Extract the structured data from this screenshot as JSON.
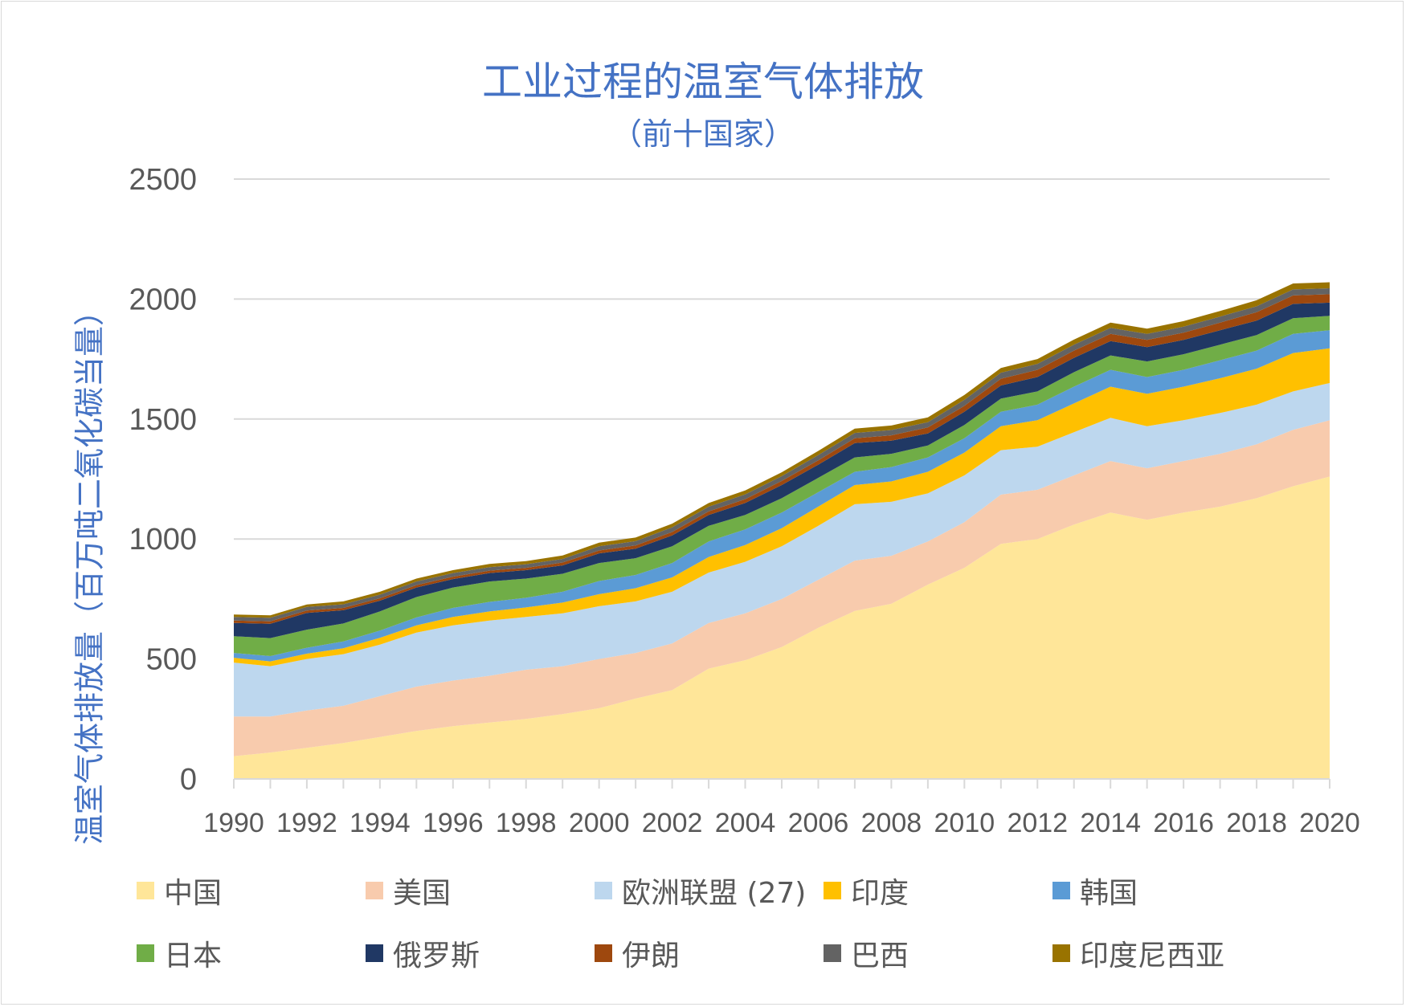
{
  "chart_data": {
    "type": "area",
    "stacked": true,
    "title": "工业过程的温室气体排放",
    "subtitle": "（前十国家）",
    "ylabel": "温室气体排放量（百万吨二氧化碳当量）",
    "xlabel": "",
    "ylim": [
      0,
      2500
    ],
    "yticks": [
      "0",
      "500",
      "1000",
      "1500",
      "2000",
      "2500"
    ],
    "xticks": [
      "1990",
      "1992",
      "1994",
      "1996",
      "1998",
      "2000",
      "2002",
      "2004",
      "2006",
      "2008",
      "2010",
      "2012",
      "2014",
      "2016",
      "2018",
      "2020"
    ],
    "grid": true,
    "legend_position": "bottom",
    "x": [
      1990,
      1991,
      1992,
      1993,
      1994,
      1995,
      1996,
      1997,
      1998,
      1999,
      2000,
      2001,
      2002,
      2003,
      2004,
      2005,
      2006,
      2007,
      2008,
      2009,
      2010,
      2011,
      2012,
      2013,
      2014,
      2015,
      2016,
      2017,
      2018,
      2019,
      2020
    ],
    "series": [
      {
        "name": "中国",
        "color": "#ffe699",
        "values": [
          95,
          110,
          130,
          150,
          175,
          200,
          220,
          235,
          250,
          270,
          295,
          335,
          370,
          460,
          495,
          550,
          630,
          700,
          730,
          810,
          880,
          980,
          1000,
          1060,
          1110,
          1080,
          1110,
          1135,
          1170,
          1220,
          1260
        ]
      },
      {
        "name": "美国",
        "color": "#f8cbad",
        "values": [
          165,
          150,
          155,
          155,
          170,
          185,
          190,
          195,
          205,
          200,
          205,
          190,
          195,
          190,
          195,
          200,
          200,
          210,
          200,
          180,
          190,
          205,
          205,
          205,
          215,
          215,
          215,
          220,
          225,
          235,
          235
        ]
      },
      {
        "name": "欧洲联盟 (27)",
        "color": "#bdd7ee",
        "values": [
          225,
          210,
          215,
          215,
          215,
          225,
          230,
          230,
          220,
          220,
          220,
          215,
          215,
          210,
          215,
          220,
          225,
          235,
          225,
          200,
          195,
          185,
          180,
          180,
          180,
          175,
          170,
          170,
          165,
          160,
          155
        ]
      },
      {
        "name": "印度",
        "color": "#ffc000",
        "values": [
          20,
          20,
          22,
          25,
          28,
          30,
          35,
          38,
          40,
          45,
          50,
          55,
          60,
          65,
          70,
          75,
          80,
          80,
          85,
          90,
          95,
          100,
          110,
          120,
          130,
          135,
          140,
          145,
          150,
          160,
          145
        ]
      },
      {
        "name": "韩国",
        "color": "#5b9bd5",
        "values": [
          20,
          22,
          25,
          28,
          30,
          33,
          38,
          40,
          40,
          45,
          55,
          55,
          60,
          65,
          65,
          65,
          60,
          55,
          60,
          60,
          60,
          60,
          65,
          70,
          70,
          70,
          70,
          75,
          75,
          80,
          75
        ]
      },
      {
        "name": "日本",
        "color": "#70ad47",
        "values": [
          70,
          75,
          75,
          75,
          80,
          85,
          85,
          85,
          80,
          75,
          75,
          70,
          70,
          65,
          60,
          60,
          60,
          60,
          55,
          50,
          55,
          55,
          55,
          60,
          60,
          65,
          65,
          65,
          65,
          65,
          60
        ]
      },
      {
        "name": "俄罗斯",
        "color": "#203864",
        "values": [
          55,
          60,
          70,
          55,
          45,
          40,
          35,
          35,
          35,
          35,
          40,
          40,
          45,
          45,
          50,
          55,
          55,
          60,
          55,
          50,
          55,
          55,
          60,
          60,
          60,
          60,
          60,
          60,
          60,
          60,
          55
        ]
      },
      {
        "name": "伊朗",
        "color": "#9e480e",
        "values": [
          10,
          10,
          10,
          10,
          10,
          10,
          10,
          10,
          10,
          12,
          12,
          13,
          14,
          15,
          16,
          17,
          18,
          20,
          22,
          25,
          25,
          28,
          30,
          30,
          30,
          30,
          30,
          32,
          35,
          35,
          35
        ]
      },
      {
        "name": "巴西",
        "color": "#636363",
        "values": [
          15,
          15,
          15,
          15,
          15,
          15,
          15,
          15,
          15,
          15,
          18,
          18,
          20,
          20,
          20,
          20,
          22,
          22,
          22,
          22,
          25,
          25,
          25,
          25,
          25,
          25,
          25,
          25,
          25,
          25,
          25
        ]
      },
      {
        "name": "印度尼西亚",
        "color": "#997300",
        "values": [
          10,
          10,
          10,
          12,
          12,
          12,
          12,
          13,
          13,
          14,
          15,
          15,
          15,
          15,
          16,
          16,
          17,
          18,
          19,
          20,
          20,
          20,
          20,
          21,
          22,
          22,
          23,
          23,
          25,
          25,
          25
        ]
      }
    ]
  },
  "colors": {
    "title": "#4472c4",
    "gridline": "#d9d9d9",
    "tick_text": "#595959"
  }
}
